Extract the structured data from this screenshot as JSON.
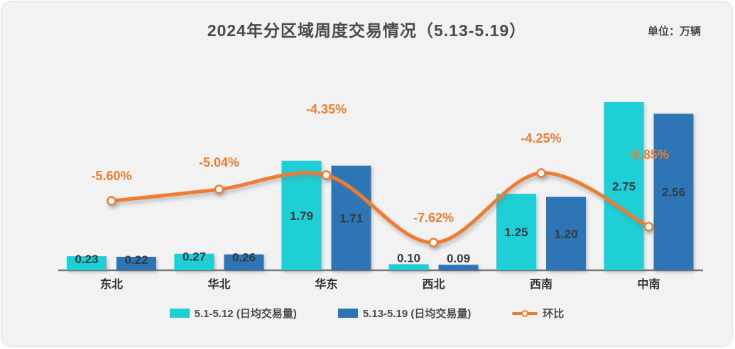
{
  "header": {
    "title": "2024年分区域周度交易情况（5.13-5.19）",
    "unit_label": "单位：万辆"
  },
  "chart_data": {
    "type": "bar",
    "title": "2024年分区域周度交易情况（5.13-5.19）",
    "unit": "万辆",
    "categories": [
      "东北",
      "华北",
      "华东",
      "西北",
      "西南",
      "中南"
    ],
    "series": [
      {
        "name": "5.1-5.12 (日均交易量)",
        "type": "bar",
        "color": "#1ecfd6",
        "values": [
          0.23,
          0.27,
          1.79,
          0.1,
          1.25,
          2.75
        ],
        "value_labels": [
          "0.23",
          "0.27",
          "1.79",
          "0.10",
          "1.25",
          "2.75"
        ]
      },
      {
        "name": "5.13-5.19 (日均交易量)",
        "type": "bar",
        "color": "#2e75b6",
        "values": [
          0.22,
          0.26,
          1.71,
          0.09,
          1.2,
          2.56
        ],
        "value_labels": [
          "0.22",
          "0.26",
          "1.71",
          "0.09",
          "1.20",
          "2.56"
        ]
      },
      {
        "name": "环比",
        "type": "line",
        "color": "#ed7d31",
        "marker": "circle-white-fill",
        "values": [
          -5.6,
          -5.04,
          -4.35,
          -7.62,
          -4.25,
          -6.85
        ],
        "value_labels": [
          "-5.60%",
          "-5.04%",
          "-4.35%",
          "-7.62%",
          "-4.25%",
          "-6.85%"
        ]
      }
    ],
    "xlabel": "",
    "ylabel": "",
    "y_axis_visible": false,
    "grid": false,
    "legend_position": "bottom",
    "baseline_color": "#7a7a7a",
    "background_color": "#f2f2f3",
    "label_text_color": "#333b42",
    "pct_label_color": "#ed7d31"
  }
}
